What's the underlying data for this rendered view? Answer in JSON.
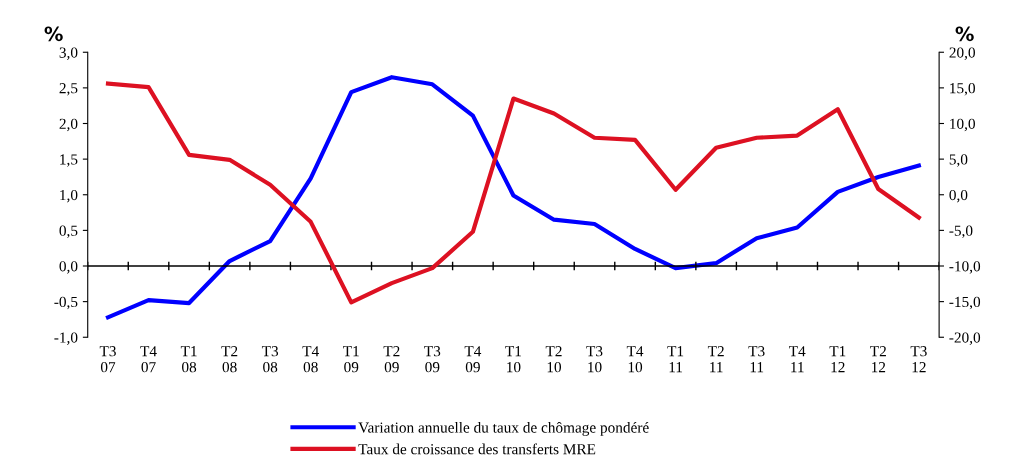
{
  "chart_data": {
    "type": "line",
    "ylabel": "%",
    "y2label": "%",
    "categories": [
      "T3\n07",
      "T4\n07",
      "T1\n08",
      "T2\n08",
      "T3\n08",
      "T4\n08",
      "T1\n09",
      "T2\n09",
      "T3\n09",
      "T4\n09",
      "T1\n10",
      "T2\n10",
      "T3\n10",
      "T4\n10",
      "T1\n11",
      "T2\n11",
      "T3\n11",
      "T4\n11",
      "T1\n12",
      "T2\n12",
      "T3\n12"
    ],
    "series": [
      {
        "name": "Variation annuelle du taux de chômage pondéré",
        "color": "#0000ff",
        "values": [
          -0.72,
          -0.48,
          -0.52,
          0.07,
          0.35,
          1.23,
          2.44,
          2.65,
          2.55,
          2.11,
          0.99,
          0.65,
          0.59,
          0.24,
          -0.03,
          0.04,
          0.39,
          0.54,
          1.04,
          1.25,
          1.41
        ]
      },
      {
        "name": "Taux de croissance des transferts MRE",
        "color": "#dd1122",
        "axis": "y2",
        "values": [
          15.6,
          15.1,
          5.6,
          4.9,
          1.4,
          -3.8,
          -15.1,
          -12.4,
          -10.3,
          -5.2,
          13.5,
          11.4,
          8.0,
          7.7,
          0.7,
          6.6,
          8.0,
          8.3,
          12.0,
          0.8,
          -3.2
        ]
      }
    ],
    "ylim": [
      -1.0,
      3.0
    ],
    "yticks": [
      {
        "value": -1.0,
        "label": "-1,0"
      },
      {
        "value": -0.5,
        "label": "-0,5"
      },
      {
        "value": 0,
        "label": "0,0"
      },
      {
        "value": 0.5,
        "label": "0,5"
      },
      {
        "value": 1.0,
        "label": "1,0"
      },
      {
        "value": 1.5,
        "label": "1,5"
      },
      {
        "value": 2.0,
        "label": "2,0"
      },
      {
        "value": 2.5,
        "label": "2,5"
      },
      {
        "value": 3.0,
        "label": "3,0"
      }
    ],
    "y2lim": [
      -20,
      20
    ],
    "y2ticks": [
      {
        "value": -20,
        "label": "-20,0"
      },
      {
        "value": -15,
        "label": "-15,0"
      },
      {
        "value": -10,
        "label": "-10,0"
      },
      {
        "value": -5,
        "label": "-5,0"
      },
      {
        "value": 0,
        "label": "0,0"
      },
      {
        "value": 5,
        "label": "5,0"
      },
      {
        "value": 10,
        "label": "10,0"
      },
      {
        "value": 15,
        "label": "15,0"
      },
      {
        "value": 20,
        "label": "20,0"
      }
    ],
    "legend": "bottom",
    "marker": "none",
    "line_style": "solid"
  }
}
